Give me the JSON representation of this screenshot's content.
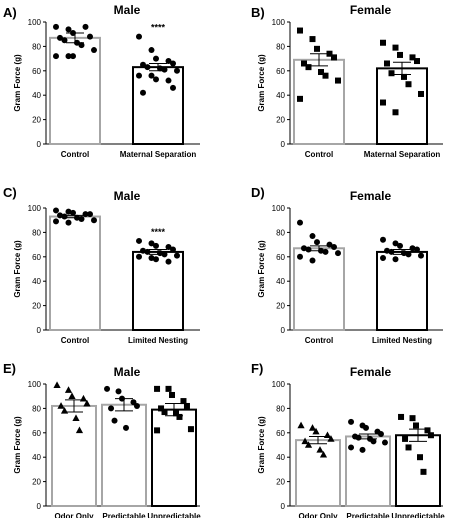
{
  "chart_data": [
    {
      "type": "bar",
      "panel_label": "A)",
      "title": "Male",
      "ylabel": "Gram Force (g)",
      "ylim": [
        0,
        100
      ],
      "yticks": [
        "0",
        "20",
        "40",
        "60",
        "80",
        "100"
      ],
      "categories": [
        "Control",
        "Maternal Separation"
      ],
      "values": [
        87,
        63
      ],
      "errors": [
        4,
        3
      ],
      "bar_colors": [
        "#a6a6a6",
        "#000000"
      ],
      "marker": "circle",
      "significance": [
        "",
        "****"
      ],
      "points": [
        [
          96,
          94,
          91,
          96,
          88,
          87,
          85,
          83,
          81,
          77,
          72,
          72,
          72
        ],
        [
          88,
          77,
          70,
          68,
          66,
          65,
          63,
          62,
          61,
          60,
          56,
          56,
          53,
          52,
          46,
          42
        ]
      ]
    },
    {
      "type": "bar",
      "panel_label": "B)",
      "title": "Female",
      "ylabel": "Gram Force (g)",
      "ylim": [
        0,
        100
      ],
      "yticks": [
        "0",
        "20",
        "40",
        "60",
        "80",
        "100"
      ],
      "categories": [
        "Control",
        "Maternal Separation"
      ],
      "values": [
        69,
        62
      ],
      "errors": [
        5,
        5
      ],
      "bar_colors": [
        "#a6a6a6",
        "#000000"
      ],
      "marker": "square",
      "significance": [
        "",
        ""
      ],
      "points": [
        [
          93,
          86,
          78,
          74,
          71,
          66,
          63,
          59,
          56,
          52,
          37
        ],
        [
          83,
          79,
          73,
          71,
          68,
          66,
          58,
          55,
          49,
          41,
          34,
          26
        ]
      ]
    },
    {
      "type": "bar",
      "panel_label": "C)",
      "title": "Male",
      "ylabel": "Gram Force (g)",
      "ylim": [
        0,
        100
      ],
      "yticks": [
        "0",
        "20",
        "40",
        "60",
        "80",
        "100"
      ],
      "categories": [
        "Control",
        "Limited Nesting"
      ],
      "values": [
        93,
        64
      ],
      "errors": [
        1,
        2
      ],
      "bar_colors": [
        "#a6a6a6",
        "#000000"
      ],
      "marker": "circle",
      "significance": [
        "",
        "****"
      ],
      "points": [
        [
          98,
          97,
          96,
          95,
          95,
          94,
          93,
          92,
          91,
          90,
          89,
          88
        ],
        [
          73,
          71,
          69,
          68,
          66,
          65,
          64,
          63,
          62,
          61,
          60,
          59,
          58,
          56
        ]
      ]
    },
    {
      "type": "bar",
      "panel_label": "D)",
      "title": "Female",
      "ylabel": "Gram Force (g)",
      "ylim": [
        0,
        100
      ],
      "yticks": [
        "0",
        "20",
        "40",
        "60",
        "80",
        "100"
      ],
      "categories": [
        "Control",
        "Limited Nesting"
      ],
      "values": [
        67,
        64
      ],
      "errors": [
        2,
        2
      ],
      "bar_colors": [
        "#a6a6a6",
        "#000000"
      ],
      "marker": "circle",
      "significance": [
        "",
        ""
      ],
      "points": [
        [
          88,
          77,
          72,
          70,
          68,
          67,
          66,
          65,
          64,
          63,
          60,
          57
        ],
        [
          74,
          71,
          69,
          67,
          66,
          65,
          64,
          63,
          62,
          61,
          59,
          58
        ]
      ]
    },
    {
      "type": "bar",
      "panel_label": "E)",
      "title": "Male",
      "ylabel": "Gram Force (g)",
      "ylim": [
        0,
        100
      ],
      "yticks": [
        "0",
        "20",
        "40",
        "60",
        "80",
        "100"
      ],
      "categories": [
        "Odor Only",
        "Predictable",
        "Unpredictable"
      ],
      "values": [
        82,
        83,
        79
      ],
      "errors": [
        5,
        5,
        5
      ],
      "bar_colors": [
        "#a6a6a6",
        "#a6a6a6",
        "#000000"
      ],
      "markers": [
        "triangle",
        "circle",
        "square"
      ],
      "significance": [
        "",
        "",
        ""
      ],
      "points": [
        [
          99,
          95,
          90,
          88,
          84,
          82,
          78,
          72,
          62
        ],
        [
          96,
          94,
          88,
          85,
          82,
          80,
          70,
          64
        ],
        [
          96,
          96,
          91,
          86,
          82,
          80,
          77,
          76,
          73,
          63,
          62
        ]
      ]
    },
    {
      "type": "bar",
      "panel_label": "F)",
      "title": "Female",
      "ylabel": "Gram Force (g)",
      "ylim": [
        0,
        100
      ],
      "yticks": [
        "0",
        "20",
        "40",
        "60",
        "80",
        "100"
      ],
      "categories": [
        "Odor Only",
        "Predictable",
        "Unpredictable"
      ],
      "values": [
        54,
        57,
        58
      ],
      "errors": [
        3,
        2,
        5
      ],
      "bar_colors": [
        "#a6a6a6",
        "#a6a6a6",
        "#000000"
      ],
      "markers": [
        "triangle",
        "circle",
        "square"
      ],
      "significance": [
        "",
        "",
        ""
      ],
      "points": [
        [
          66,
          64,
          61,
          58,
          55,
          53,
          50,
          46,
          42
        ],
        [
          69,
          66,
          64,
          61,
          59,
          57,
          56,
          55,
          53,
          52,
          48,
          46
        ],
        [
          73,
          72,
          66,
          62,
          58,
          55,
          48,
          40,
          28
        ]
      ]
    }
  ]
}
